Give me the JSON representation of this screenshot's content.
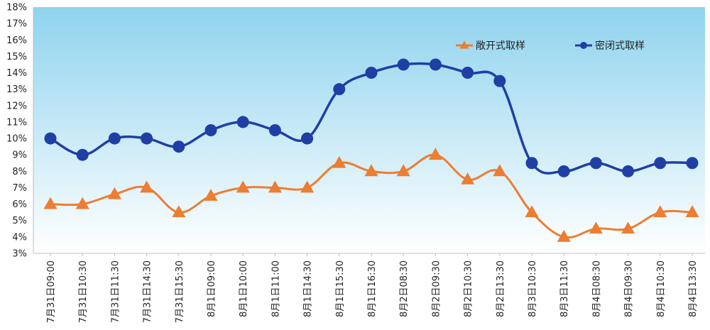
{
  "chart_data": {
    "type": "line",
    "title": "",
    "xlabel": "",
    "ylabel": "",
    "ylim": [
      3,
      18
    ],
    "y_tick_labels": [
      "3%",
      "4%",
      "5%",
      "6%",
      "7%",
      "8%",
      "9%",
      "10%",
      "11%",
      "12%",
      "13%",
      "14%",
      "15%",
      "16%",
      "17%",
      "18%"
    ],
    "grid": false,
    "legend_position": "top-right",
    "categories": [
      "7月31日09:00",
      "7月31日10:30",
      "7月31日11:30",
      "7月31日14:30",
      "7月31日15:30",
      "8月1日09:00",
      "8月1日10:00",
      "8月1日11:00",
      "8月1日14:30",
      "8月1日15:30",
      "8月1日16:30",
      "8月2日08:30",
      "8月2日09:30",
      "8月2日10:30",
      "8月2日13:30",
      "8月3日10:30",
      "8月3日11:30",
      "8月4日08:30",
      "8月4日09:30",
      "8月4日10:30",
      "8月4日13:30"
    ],
    "series": [
      {
        "name": "敞开式取样",
        "color": "#ED7D31",
        "marker": "triangle",
        "values": [
          6,
          6,
          6.6,
          7,
          5.5,
          6.5,
          7,
          7,
          7,
          8.5,
          8,
          8,
          9,
          7.5,
          8,
          5.5,
          4,
          4.5,
          4.5,
          5.5,
          5.5
        ]
      },
      {
        "name": "密闭式取样",
        "color": "#1F3FA5",
        "marker": "circle",
        "values": [
          10,
          9,
          10,
          10,
          9.5,
          10.5,
          11,
          10.5,
          10,
          13,
          14,
          14.5,
          14.5,
          14,
          13.5,
          8.5,
          8,
          8.5,
          8,
          8.5,
          8.5
        ]
      }
    ],
    "background_gradient": [
      "#8FD3EE",
      "#FFFFFF"
    ]
  }
}
